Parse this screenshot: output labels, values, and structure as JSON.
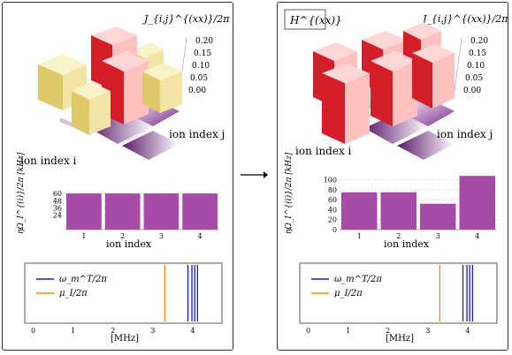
{
  "left": {
    "z_axis_label": "J_{i,j}^{(xx)}/2π [kHz]",
    "z_ticks": [
      "0.20",
      "0.15",
      "0.10",
      "0.05",
      "0.00"
    ],
    "axis_i": "ion index i",
    "axis_j": "ion index j",
    "bar_ylabel": "ηΩ_I^{(i)}/2π [kHz]",
    "bar_xlabel": "ion index",
    "bar_ticks_y": [
      "60",
      "48",
      "36",
      "24"
    ],
    "legend_omega": "ω_m^T/2π",
    "legend_mu": "μ_I/2π",
    "freq_xlabel": "[MHz]",
    "freq_ticks": [
      "0",
      "1",
      "2",
      "3",
      "4"
    ]
  },
  "right": {
    "box_label": "H^{(xx)}",
    "z_axis_label": "J_{i,j}^{(xx)}/2π [kHz]",
    "z_ticks": [
      "0.20",
      "0.15",
      "0.10",
      "0.05",
      "0.00"
    ],
    "axis_i": "ion index i",
    "axis_j": "ion index j",
    "bar_ylabel": "ηΩ_I^{(i)}/2π [kHz]",
    "bar_xlabel": "ion index",
    "bar_ticks_y": [
      "100",
      "80",
      "60",
      "40",
      "20",
      "0"
    ],
    "legend_omega": "ω_m^T/2π",
    "legend_mu": "μ_I/2π",
    "freq_xlabel": "[MHz]",
    "freq_ticks": [
      "0",
      "1",
      "2",
      "3",
      "4"
    ]
  },
  "chart_data": [
    {
      "type": "bar",
      "title": "",
      "xlabel": "ion index",
      "ylabel": "ηΩ_I^{(i)}/2π [kHz]",
      "categories": [
        "1",
        "2",
        "3",
        "4"
      ],
      "values": [
        60,
        60,
        60,
        60
      ],
      "ylim": [
        0,
        66
      ],
      "color": "#a64ca6"
    },
    {
      "type": "bar",
      "title": "",
      "xlabel": "ion index",
      "ylabel": "ηΩ_I^{(i)}/2π [kHz]",
      "categories": [
        "1",
        "2",
        "3",
        "4"
      ],
      "values": [
        75,
        75,
        52,
        108
      ],
      "ylim": [
        0,
        110
      ],
      "color": "#a64ca6"
    },
    {
      "type": "line",
      "xlabel": "[MHz]",
      "xlim": [
        -0.1,
        4.6
      ],
      "series": [
        {
          "name": "ω_m^T/2π",
          "color": "#1a1acc",
          "x": [
            3.88,
            3.98,
            4.05,
            4.12
          ]
        },
        {
          "name": "μ_I/2π",
          "color": "#ff8c00",
          "x": [
            3.3
          ]
        }
      ]
    },
    {
      "type": "line",
      "xlabel": "[MHz]",
      "xlim": [
        -0.1,
        4.6
      ],
      "series": [
        {
          "name": "ω_m^T/2π",
          "color": "#1a1acc",
          "x": [
            3.88,
            3.98,
            4.05,
            4.12
          ]
        },
        {
          "name": "μ_I/2π",
          "color": "#ff8c00",
          "x": [
            3.3
          ]
        }
      ]
    }
  ]
}
